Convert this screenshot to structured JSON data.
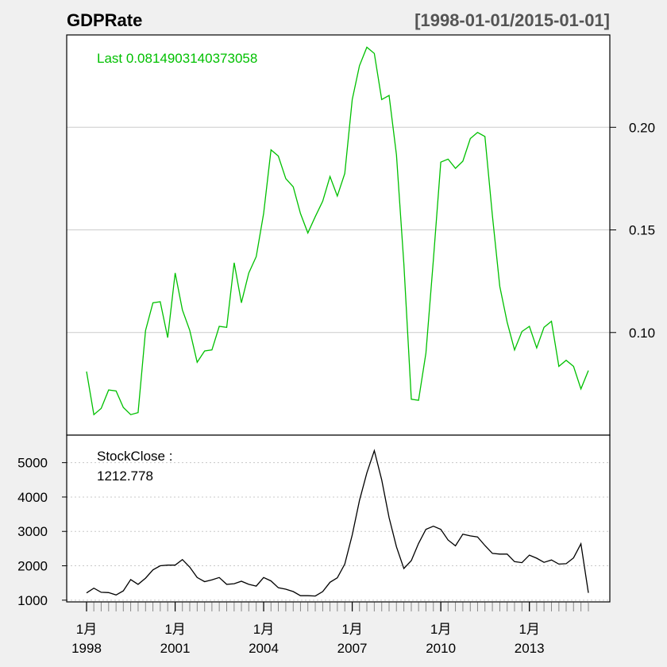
{
  "chart_data": {
    "title": "GDPRate",
    "date_range": "[1998-01-01/2015-01-01]",
    "x_axis": {
      "type": "date",
      "range": [
        "1998-01-01",
        "2015-01-01"
      ],
      "tick_labels": [
        {
          "date": "1998-01-01",
          "line1": "1月",
          "line2": "1998"
        },
        {
          "date": "2001-01-01",
          "line1": "1月",
          "line2": "2001"
        },
        {
          "date": "2004-01-01",
          "line1": "1月",
          "line2": "2004"
        },
        {
          "date": "2007-01-01",
          "line1": "1月",
          "line2": "2007"
        },
        {
          "date": "2010-01-01",
          "line1": "1月",
          "line2": "2010"
        },
        {
          "date": "2013-01-01",
          "line1": "1月",
          "line2": "2013"
        }
      ]
    },
    "panels": [
      {
        "type": "line",
        "series_name": "GDPRate",
        "color": "#00c000",
        "legend": "Last 0.0814903140373058",
        "y_axis_side": "right",
        "ylim": [
          0.05,
          0.245
        ],
        "y_ticks": [
          0.1,
          0.15,
          0.2
        ],
        "y_tick_labels": [
          "0.10",
          "0.15",
          "0.20"
        ],
        "grid": "solid",
        "points": [
          [
            "1998-01-01",
            0.081
          ],
          [
            "1998-04-01",
            0.06
          ],
          [
            "1998-07-01",
            0.063
          ],
          [
            "1998-10-01",
            0.072
          ],
          [
            "1999-01-01",
            0.0715
          ],
          [
            "1999-04-01",
            0.0635
          ],
          [
            "1999-07-01",
            0.06
          ],
          [
            "1999-10-01",
            0.061
          ],
          [
            "2000-01-01",
            0.101
          ],
          [
            "2000-04-01",
            0.1145
          ],
          [
            "2000-07-01",
            0.115
          ],
          [
            "2000-10-01",
            0.0975
          ],
          [
            "2001-01-01",
            0.129
          ],
          [
            "2001-04-01",
            0.111
          ],
          [
            "2001-07-01",
            0.101
          ],
          [
            "2001-10-01",
            0.0855
          ],
          [
            "2002-01-01",
            0.091
          ],
          [
            "2002-04-01",
            0.0915
          ],
          [
            "2002-07-01",
            0.103
          ],
          [
            "2002-10-01",
            0.1025
          ],
          [
            "2003-01-01",
            0.134
          ],
          [
            "2003-04-01",
            0.1145
          ],
          [
            "2003-07-01",
            0.129
          ],
          [
            "2003-10-01",
            0.137
          ],
          [
            "2004-01-01",
            0.158
          ],
          [
            "2004-04-01",
            0.189
          ],
          [
            "2004-07-01",
            0.186
          ],
          [
            "2004-10-01",
            0.175
          ],
          [
            "2005-01-01",
            0.171
          ],
          [
            "2005-04-01",
            0.158
          ],
          [
            "2005-07-01",
            0.1485
          ],
          [
            "2005-10-01",
            0.1565
          ],
          [
            "2006-01-01",
            0.164
          ],
          [
            "2006-04-01",
            0.176
          ],
          [
            "2006-07-01",
            0.1665
          ],
          [
            "2006-10-01",
            0.1775
          ],
          [
            "2007-01-01",
            0.2135
          ],
          [
            "2007-04-01",
            0.23
          ],
          [
            "2007-07-01",
            0.239
          ],
          [
            "2007-10-01",
            0.236
          ],
          [
            "2008-01-01",
            0.2135
          ],
          [
            "2008-04-01",
            0.2155
          ],
          [
            "2008-07-01",
            0.1865
          ],
          [
            "2008-10-01",
            0.1335
          ],
          [
            "2009-01-01",
            0.0675
          ],
          [
            "2009-04-01",
            0.067
          ],
          [
            "2009-07-01",
            0.09
          ],
          [
            "2009-10-01",
            0.1355
          ],
          [
            "2010-01-01",
            0.183
          ],
          [
            "2010-04-01",
            0.1845
          ],
          [
            "2010-07-01",
            0.18
          ],
          [
            "2010-10-01",
            0.1835
          ],
          [
            "2011-01-01",
            0.1945
          ],
          [
            "2011-04-01",
            0.1975
          ],
          [
            "2011-07-01",
            0.1955
          ],
          [
            "2011-10-01",
            0.157
          ],
          [
            "2012-01-01",
            0.1225
          ],
          [
            "2012-04-01",
            0.105
          ],
          [
            "2012-07-01",
            0.0915
          ],
          [
            "2012-10-01",
            0.1005
          ],
          [
            "2013-01-01",
            0.103
          ],
          [
            "2013-04-01",
            0.0925
          ],
          [
            "2013-07-01",
            0.1025
          ],
          [
            "2013-10-01",
            0.1055
          ],
          [
            "2014-01-01",
            0.0835
          ],
          [
            "2014-04-01",
            0.0865
          ],
          [
            "2014-07-01",
            0.0835
          ],
          [
            "2014-10-01",
            0.0725
          ],
          [
            "2015-01-01",
            0.0815
          ]
        ]
      },
      {
        "type": "line",
        "series_name": "StockClose",
        "color": "#000000",
        "legend_line1": "StockClose :",
        "legend_line2": "1212.778",
        "y_axis_side": "left",
        "ylim": [
          950,
          5800
        ],
        "y_ticks": [
          1000,
          2000,
          3000,
          4000,
          5000
        ],
        "y_tick_labels": [
          "1000",
          "2000",
          "3000",
          "4000",
          "5000"
        ],
        "grid": "dotted",
        "points": [
          [
            "1998-01-01",
            1210
          ],
          [
            "1998-04-01",
            1350
          ],
          [
            "1998-07-01",
            1230
          ],
          [
            "1998-10-01",
            1220
          ],
          [
            "1999-01-01",
            1150
          ],
          [
            "1999-04-01",
            1270
          ],
          [
            "1999-07-01",
            1600
          ],
          [
            "1999-10-01",
            1460
          ],
          [
            "2000-01-01",
            1640
          ],
          [
            "2000-04-01",
            1880
          ],
          [
            "2000-07-01",
            2000
          ],
          [
            "2000-10-01",
            2020
          ],
          [
            "2001-01-01",
            2020
          ],
          [
            "2001-04-01",
            2180
          ],
          [
            "2001-07-01",
            1960
          ],
          [
            "2001-10-01",
            1660
          ],
          [
            "2002-01-01",
            1540
          ],
          [
            "2002-04-01",
            1590
          ],
          [
            "2002-07-01",
            1660
          ],
          [
            "2002-10-01",
            1460
          ],
          [
            "2003-01-01",
            1480
          ],
          [
            "2003-04-01",
            1550
          ],
          [
            "2003-07-01",
            1460
          ],
          [
            "2003-10-01",
            1410
          ],
          [
            "2004-01-01",
            1660
          ],
          [
            "2004-04-01",
            1560
          ],
          [
            "2004-07-01",
            1360
          ],
          [
            "2004-10-01",
            1320
          ],
          [
            "2005-01-01",
            1250
          ],
          [
            "2005-04-01",
            1130
          ],
          [
            "2005-07-01",
            1130
          ],
          [
            "2005-10-01",
            1120
          ],
          [
            "2006-01-01",
            1250
          ],
          [
            "2006-04-01",
            1520
          ],
          [
            "2006-07-01",
            1650
          ],
          [
            "2006-10-01",
            2050
          ],
          [
            "2007-01-01",
            2900
          ],
          [
            "2007-04-01",
            3900
          ],
          [
            "2007-07-01",
            4700
          ],
          [
            "2007-10-01",
            5350
          ],
          [
            "2008-01-01",
            4500
          ],
          [
            "2008-04-01",
            3400
          ],
          [
            "2008-07-01",
            2550
          ],
          [
            "2008-10-01",
            1920
          ],
          [
            "2009-01-01",
            2150
          ],
          [
            "2009-04-01",
            2650
          ],
          [
            "2009-07-01",
            3060
          ],
          [
            "2009-10-01",
            3150
          ],
          [
            "2010-01-01",
            3060
          ],
          [
            "2010-04-01",
            2750
          ],
          [
            "2010-07-01",
            2580
          ],
          [
            "2010-10-01",
            2920
          ],
          [
            "2011-01-01",
            2870
          ],
          [
            "2011-04-01",
            2840
          ],
          [
            "2011-07-01",
            2590
          ],
          [
            "2011-10-01",
            2360
          ],
          [
            "2012-01-01",
            2340
          ],
          [
            "2012-04-01",
            2340
          ],
          [
            "2012-07-01",
            2120
          ],
          [
            "2012-10-01",
            2090
          ],
          [
            "2013-01-01",
            2310
          ],
          [
            "2013-04-01",
            2220
          ],
          [
            "2013-07-01",
            2100
          ],
          [
            "2013-10-01",
            2170
          ],
          [
            "2014-01-01",
            2050
          ],
          [
            "2014-04-01",
            2060
          ],
          [
            "2014-07-01",
            2230
          ],
          [
            "2014-10-01",
            2640
          ],
          [
            "2015-01-01",
            1213
          ]
        ]
      }
    ]
  }
}
